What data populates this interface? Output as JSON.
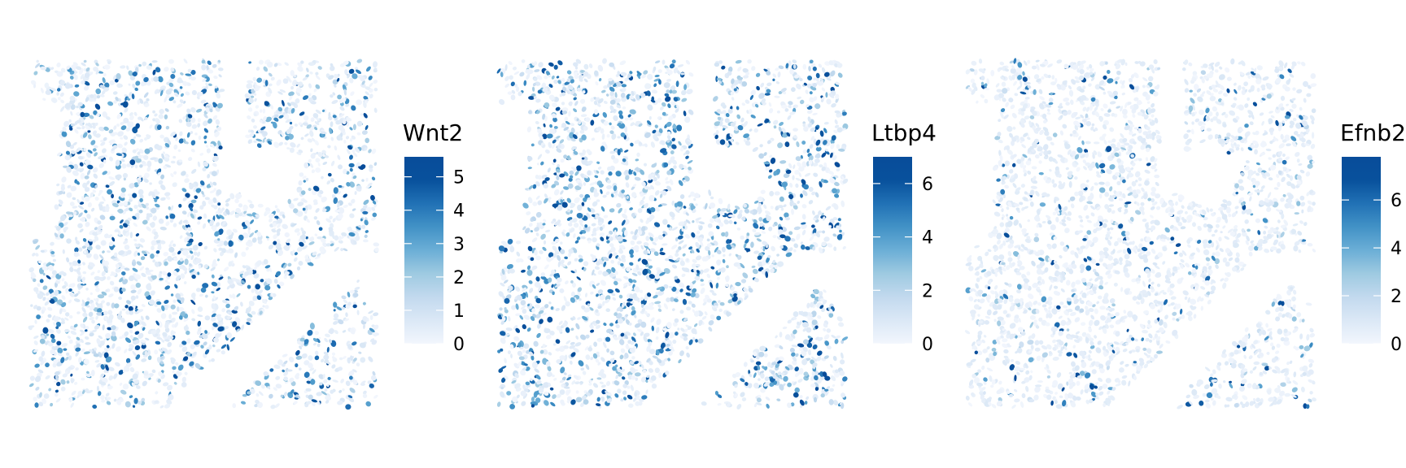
{
  "chart_data": [
    {
      "type": "scatter",
      "subtype": "spatial-feature-plot",
      "legend_title": "Wnt2",
      "legend_placement": "right",
      "color_low": "#f2f6fd",
      "color_high": "#084c9a",
      "value_range": [
        0,
        5.6
      ],
      "ticks": [
        0,
        1,
        2,
        3,
        4,
        5
      ],
      "tick_labels": [
        "0",
        "1",
        "2",
        "3",
        "4",
        "5"
      ],
      "grid": false,
      "axes_visible": false,
      "expression_density": 0.45
    },
    {
      "type": "scatter",
      "subtype": "spatial-feature-plot",
      "legend_title": "Ltbp4",
      "legend_placement": "right",
      "color_low": "#f2f6fd",
      "color_high": "#084c9a",
      "value_range": [
        0,
        7
      ],
      "ticks": [
        0,
        2,
        4,
        6
      ],
      "tick_labels": [
        "0",
        "2",
        "4",
        "6"
      ],
      "grid": false,
      "axes_visible": false,
      "expression_density": 0.6
    },
    {
      "type": "scatter",
      "subtype": "spatial-feature-plot",
      "legend_title": "Efnb2",
      "legend_placement": "right",
      "color_low": "#f2f6fd",
      "color_high": "#084c9a",
      "value_range": [
        0,
        7.8
      ],
      "ticks": [
        0,
        2,
        4,
        6
      ],
      "tick_labels": [
        "0",
        "2",
        "4",
        "6"
      ],
      "grid": false,
      "axes_visible": false,
      "expression_density": 0.18
    }
  ]
}
